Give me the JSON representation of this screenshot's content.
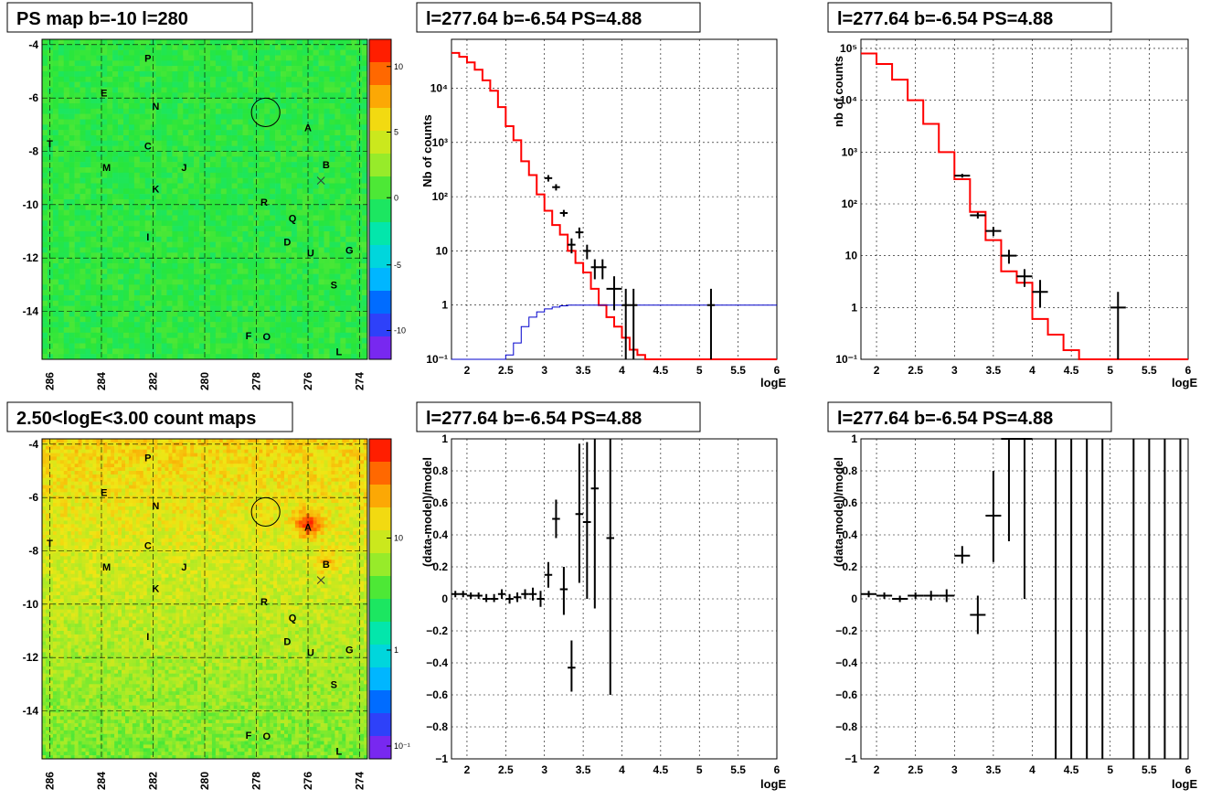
{
  "colors": {
    "model": "#ff0000",
    "second_model": "#0000cc",
    "data": "#000000",
    "map_base": "#33e040"
  },
  "panels": {
    "map_ps": {
      "title": "PS map b=-10 l=280",
      "x_ticks": [
        "286",
        "284",
        "282",
        "280",
        "278",
        "276",
        "274"
      ],
      "y_ticks": [
        "-4",
        "-6",
        "-8",
        "-10",
        "-12",
        "-14"
      ],
      "cbar_ticks": [
        "10",
        "5",
        "0",
        "-5",
        "-10"
      ]
    },
    "map_counts": {
      "title": "2.50<logE<3.00 count maps",
      "x_ticks": [
        "286",
        "284",
        "282",
        "280",
        "278",
        "276",
        "274"
      ],
      "y_ticks": [
        "-4",
        "-6",
        "-8",
        "-10",
        "-12",
        "-14"
      ],
      "cbar_ticks": [
        "10",
        "1",
        "10⁻¹"
      ]
    },
    "spec1": {
      "title": "l=277.64 b=-6.54 PS=4.88",
      "ylabel": "Nb of counts",
      "xlabel": "logE"
    },
    "spec2": {
      "title": "l=277.64 b=-6.54 PS=4.88",
      "ylabel": "nb of counts",
      "xlabel": "logE"
    },
    "resid1": {
      "title": "l=277.64 b=-6.54 PS=4.88",
      "ylabel": "(data-model)/model",
      "xlabel": "logE"
    },
    "resid2": {
      "title": "l=277.64 b=-6.54 PS=4.88",
      "ylabel": "(data-model)/model",
      "xlabel": "logE"
    }
  },
  "sources": [
    {
      "label": "P",
      "l": 282.2,
      "b": -4.5
    },
    {
      "label": "E",
      "l": 283.9,
      "b": -5.8
    },
    {
      "label": "N",
      "l": 281.9,
      "b": -6.3
    },
    {
      "label": "A",
      "l": 276.0,
      "b": -7.1
    },
    {
      "label": "T",
      "l": 286.0,
      "b": -7.7
    },
    {
      "label": "C",
      "l": 282.2,
      "b": -7.8
    },
    {
      "label": "B",
      "l": 275.3,
      "b": -8.5
    },
    {
      "label": "M",
      "l": 283.8,
      "b": -8.6
    },
    {
      "label": "J",
      "l": 280.8,
      "b": -8.6
    },
    {
      "label": "K",
      "l": 281.9,
      "b": -9.4
    },
    {
      "label": "R",
      "l": 277.7,
      "b": -9.9
    },
    {
      "label": "Q",
      "l": 276.6,
      "b": -10.5
    },
    {
      "label": "I",
      "l": 282.2,
      "b": -11.2
    },
    {
      "label": "D",
      "l": 276.8,
      "b": -11.4
    },
    {
      "label": "U",
      "l": 275.9,
      "b": -11.8
    },
    {
      "label": "G",
      "l": 274.4,
      "b": -11.7
    },
    {
      "label": "S",
      "l": 275.0,
      "b": -13.0
    },
    {
      "label": "F",
      "l": 278.3,
      "b": -14.9
    },
    {
      "label": "O",
      "l": 277.6,
      "b": -14.95
    },
    {
      "label": "L",
      "l": 274.8,
      "b": -15.5
    }
  ],
  "chart_data": [
    {
      "type": "heatmap",
      "panel": "map_ps",
      "xlabel": "",
      "ylabel": "",
      "xlim": [
        286.3,
        273.7
      ],
      "ylim": [
        -15.8,
        -3.8
      ],
      "circle": {
        "l": 277.64,
        "b": -6.54,
        "r": 0.55
      },
      "cross": {
        "l": 275.5,
        "b": -9.1
      }
    },
    {
      "type": "heatmap",
      "panel": "map_counts",
      "xlabel": "",
      "ylabel": "",
      "xlim": [
        286.3,
        273.7
      ],
      "ylim": [
        -15.8,
        -3.8
      ],
      "circle": {
        "l": 277.64,
        "b": -6.54,
        "r": 0.55
      },
      "cross": {
        "l": 275.5,
        "b": -9.1
      }
    },
    {
      "type": "line",
      "panel": "spec1",
      "ylog": true,
      "xlim": [
        1.8,
        6
      ],
      "ylim": [
        0.1,
        80000
      ],
      "x_ticks": [
        2,
        2.5,
        3,
        3.5,
        4,
        4.5,
        5,
        5.5,
        6
      ],
      "y_ticks": [
        {
          "v": 0.1,
          "l": "10⁻¹"
        },
        {
          "v": 1,
          "l": "1"
        },
        {
          "v": 10,
          "l": "10"
        },
        {
          "v": 100,
          "l": "10²"
        },
        {
          "v": 1000,
          "l": "10³"
        },
        {
          "v": 10000,
          "l": "10⁴"
        }
      ],
      "bin_edges": [
        1.8,
        1.9,
        2.0,
        2.1,
        2.2,
        2.3,
        2.4,
        2.5,
        2.6,
        2.7,
        2.8,
        2.9,
        3.0,
        3.1,
        3.2,
        3.3,
        3.4,
        3.5,
        3.6,
        3.7,
        3.8,
        3.9,
        4.0,
        4.1,
        4.2,
        4.3,
        6.0
      ],
      "series": [
        {
          "role": "model",
          "values": [
            45000,
            38000,
            30000,
            22000,
            14000,
            9000,
            4500,
            2000,
            1100,
            450,
            250,
            110,
            55,
            30,
            20,
            10,
            6,
            4,
            2,
            1,
            0.6,
            0.4,
            0.25,
            0.15,
            0.12,
            0.1
          ]
        },
        {
          "role": "second_model",
          "values": [
            0.1,
            0.1,
            0.1,
            0.1,
            0.1,
            0.1,
            0.1,
            0.12,
            0.2,
            0.4,
            0.6,
            0.75,
            0.85,
            0.92,
            0.97,
            1,
            1,
            1,
            1,
            1,
            1,
            1,
            1,
            1,
            1,
            1
          ]
        }
      ],
      "points": [
        {
          "x": 3.05,
          "y": 220,
          "xe": 0.05,
          "lo": 190,
          "hi": 250
        },
        {
          "x": 3.15,
          "y": 150,
          "xe": 0.05,
          "lo": 130,
          "hi": 170
        },
        {
          "x": 3.25,
          "y": 50,
          "xe": 0.05,
          "lo": 43,
          "hi": 57
        },
        {
          "x": 3.35,
          "y": 13,
          "xe": 0.05,
          "lo": 9,
          "hi": 17
        },
        {
          "x": 3.45,
          "y": 22,
          "xe": 0.05,
          "lo": 17,
          "hi": 27
        },
        {
          "x": 3.55,
          "y": 10,
          "xe": 0.05,
          "lo": 7,
          "hi": 13
        },
        {
          "x": 3.65,
          "y": 5,
          "xe": 0.05,
          "lo": 3,
          "hi": 7
        },
        {
          "x": 3.75,
          "y": 5,
          "xe": 0.05,
          "lo": 3,
          "hi": 7
        },
        {
          "x": 3.9,
          "y": 2,
          "xe": 0.1,
          "lo": 0.8,
          "hi": 3.4
        },
        {
          "x": 4.05,
          "y": 1,
          "xe": 0.05,
          "lo": 0.1,
          "hi": 2
        },
        {
          "x": 4.15,
          "y": 1,
          "xe": 0.05,
          "lo": 0.1,
          "hi": 2
        },
        {
          "x": 5.15,
          "y": 1,
          "xe": 0.05,
          "lo": 0.1,
          "hi": 2
        }
      ]
    },
    {
      "type": "line",
      "panel": "spec2",
      "ylog": true,
      "xlim": [
        1.8,
        6
      ],
      "ylim": [
        0.1,
        150000
      ],
      "x_ticks": [
        2,
        2.5,
        3,
        3.5,
        4,
        4.5,
        5,
        5.5,
        6
      ],
      "y_ticks": [
        {
          "v": 0.1,
          "l": "10⁻¹"
        },
        {
          "v": 1,
          "l": "1"
        },
        {
          "v": 10,
          "l": "10"
        },
        {
          "v": 100,
          "l": "10²"
        },
        {
          "v": 1000,
          "l": "10³"
        },
        {
          "v": 10000,
          "l": "10⁴"
        },
        {
          "v": 100000,
          "l": "10⁵"
        }
      ],
      "bin_edges": [
        1.8,
        2.0,
        2.2,
        2.4,
        2.6,
        2.8,
        3.0,
        3.2,
        3.4,
        3.6,
        3.8,
        4.0,
        4.2,
        4.4,
        4.6,
        6.0
      ],
      "series": [
        {
          "role": "model",
          "values": [
            80000,
            50000,
            25000,
            10000,
            3500,
            1000,
            300,
            70,
            20,
            5,
            3,
            0.6,
            0.3,
            0.15,
            0.1
          ]
        }
      ],
      "points": [
        {
          "x": 3.1,
          "y": 350,
          "xe": 0.1,
          "lo": 320,
          "hi": 380
        },
        {
          "x": 3.3,
          "y": 60,
          "xe": 0.1,
          "lo": 52,
          "hi": 68
        },
        {
          "x": 3.5,
          "y": 30,
          "xe": 0.1,
          "lo": 24,
          "hi": 36
        },
        {
          "x": 3.7,
          "y": 10,
          "xe": 0.1,
          "lo": 7,
          "hi": 13
        },
        {
          "x": 3.9,
          "y": 4,
          "xe": 0.1,
          "lo": 2.5,
          "hi": 5.5
        },
        {
          "x": 4.1,
          "y": 2,
          "xe": 0.1,
          "lo": 1,
          "hi": 3.4
        },
        {
          "x": 5.1,
          "y": 1,
          "xe": 0.1,
          "lo": 0.1,
          "hi": 2
        }
      ]
    },
    {
      "type": "scatter",
      "panel": "resid1",
      "xlim": [
        1.8,
        6
      ],
      "ylim": [
        -1,
        1
      ],
      "x_ticks": [
        2,
        2.5,
        3,
        3.5,
        4,
        4.5,
        5,
        5.5,
        6
      ],
      "y_ticks": [
        {
          "v": -1,
          "l": "−1"
        },
        {
          "v": -0.8,
          "l": "−0.8"
        },
        {
          "v": -0.6,
          "l": "−0.6"
        },
        {
          "v": -0.4,
          "l": "−0.4"
        },
        {
          "v": -0.2,
          "l": "−0.2"
        },
        {
          "v": 0,
          "l": "0"
        },
        {
          "v": 0.2,
          "l": "0.2"
        },
        {
          "v": 0.4,
          "l": "0.4"
        },
        {
          "v": 0.6,
          "l": "0.6"
        },
        {
          "v": 0.8,
          "l": "0.8"
        },
        {
          "v": 1,
          "l": "1"
        }
      ],
      "points": [
        {
          "x": 1.85,
          "y": 0.03,
          "xe": 0.05,
          "lo": 0.01,
          "hi": 0.05
        },
        {
          "x": 1.95,
          "y": 0.03,
          "xe": 0.05,
          "lo": 0.01,
          "hi": 0.05
        },
        {
          "x": 2.05,
          "y": 0.02,
          "xe": 0.05,
          "lo": 0.0,
          "hi": 0.04
        },
        {
          "x": 2.15,
          "y": 0.02,
          "xe": 0.05,
          "lo": 0.0,
          "hi": 0.04
        },
        {
          "x": 2.25,
          "y": 0.0,
          "xe": 0.05,
          "lo": -0.02,
          "hi": 0.03
        },
        {
          "x": 2.35,
          "y": 0.0,
          "xe": 0.05,
          "lo": -0.02,
          "hi": 0.03
        },
        {
          "x": 2.45,
          "y": 0.03,
          "xe": 0.05,
          "lo": 0.0,
          "hi": 0.06
        },
        {
          "x": 2.55,
          "y": 0.0,
          "xe": 0.05,
          "lo": -0.03,
          "hi": 0.03
        },
        {
          "x": 2.65,
          "y": 0.01,
          "xe": 0.05,
          "lo": -0.02,
          "hi": 0.04
        },
        {
          "x": 2.75,
          "y": 0.03,
          "xe": 0.05,
          "lo": 0.0,
          "hi": 0.06
        },
        {
          "x": 2.85,
          "y": 0.03,
          "xe": 0.05,
          "lo": -0.01,
          "hi": 0.07
        },
        {
          "x": 2.95,
          "y": 0.0,
          "xe": 0.05,
          "lo": -0.05,
          "hi": 0.05
        },
        {
          "x": 3.05,
          "y": 0.15,
          "xe": 0.05,
          "lo": 0.07,
          "hi": 0.23
        },
        {
          "x": 3.15,
          "y": 0.5,
          "xe": 0.05,
          "lo": 0.38,
          "hi": 0.62
        },
        {
          "x": 3.25,
          "y": 0.06,
          "xe": 0.05,
          "lo": -0.1,
          "hi": 0.2
        },
        {
          "x": 3.35,
          "y": -0.43,
          "xe": 0.05,
          "lo": -0.58,
          "hi": -0.26
        },
        {
          "x": 3.45,
          "y": 0.53,
          "xe": 0.05,
          "lo": 0.1,
          "hi": 0.97
        },
        {
          "x": 3.55,
          "y": 0.48,
          "xe": 0.05,
          "lo": 0.0,
          "hi": 0.98
        },
        {
          "x": 3.65,
          "y": 0.69,
          "xe": 0.05,
          "lo": -0.06,
          "hi": 1.0
        },
        {
          "x": 3.85,
          "y": 0.38,
          "xe": 0.05,
          "lo": -0.6,
          "hi": 1.0
        }
      ]
    },
    {
      "type": "scatter",
      "panel": "resid2",
      "xlim": [
        1.8,
        6
      ],
      "ylim": [
        -1,
        1
      ],
      "x_ticks": [
        2,
        2.5,
        3,
        3.5,
        4,
        4.5,
        5,
        5.5,
        6
      ],
      "y_ticks": [
        {
          "v": -1,
          "l": "−1"
        },
        {
          "v": -0.8,
          "l": "−0.8"
        },
        {
          "v": -0.6,
          "l": "−0.6"
        },
        {
          "v": -0.4,
          "l": "−0.4"
        },
        {
          "v": -0.2,
          "l": "−0.2"
        },
        {
          "v": 0,
          "l": "0"
        },
        {
          "v": 0.2,
          "l": "0.2"
        },
        {
          "v": 0.4,
          "l": "0.4"
        },
        {
          "v": 0.6,
          "l": "0.6"
        },
        {
          "v": 0.8,
          "l": "0.8"
        },
        {
          "v": 1,
          "l": "1"
        }
      ],
      "points": [
        {
          "x": 1.9,
          "y": 0.03,
          "xe": 0.1,
          "lo": 0.01,
          "hi": 0.05
        },
        {
          "x": 2.1,
          "y": 0.02,
          "xe": 0.1,
          "lo": 0.0,
          "hi": 0.04
        },
        {
          "x": 2.3,
          "y": 0.0,
          "xe": 0.1,
          "lo": -0.02,
          "hi": 0.02
        },
        {
          "x": 2.5,
          "y": 0.02,
          "xe": 0.1,
          "lo": 0.0,
          "hi": 0.04
        },
        {
          "x": 2.7,
          "y": 0.02,
          "xe": 0.1,
          "lo": -0.01,
          "hi": 0.05
        },
        {
          "x": 2.9,
          "y": 0.02,
          "xe": 0.1,
          "lo": -0.02,
          "hi": 0.06
        },
        {
          "x": 3.1,
          "y": 0.27,
          "xe": 0.1,
          "lo": 0.22,
          "hi": 0.33
        },
        {
          "x": 3.3,
          "y": -0.1,
          "xe": 0.1,
          "lo": -0.22,
          "hi": 0.02
        },
        {
          "x": 3.5,
          "y": 0.52,
          "xe": 0.1,
          "lo": 0.23,
          "hi": 0.8
        },
        {
          "x": 3.7,
          "y": 1.0,
          "xe": 0.1,
          "lo": 0.36,
          "hi": 1.0
        },
        {
          "x": 3.9,
          "y": 1.0,
          "xe": 0.1,
          "lo": 0.0,
          "hi": 1.0
        },
        {
          "x": 4.3,
          "y": 1.0,
          "xe": 0.0,
          "lo": -1.0,
          "hi": 1.0
        },
        {
          "x": 4.5,
          "y": 1.0,
          "xe": 0.0,
          "lo": -1.0,
          "hi": 1.0
        },
        {
          "x": 4.7,
          "y": 1.0,
          "xe": 0.0,
          "lo": -1.0,
          "hi": 1.0
        },
        {
          "x": 4.9,
          "y": 1.0,
          "xe": 0.0,
          "lo": -1.0,
          "hi": 1.0
        },
        {
          "x": 5.3,
          "y": 1.0,
          "xe": 0.0,
          "lo": -1.0,
          "hi": 1.0
        },
        {
          "x": 5.5,
          "y": 1.0,
          "xe": 0.0,
          "lo": -1.0,
          "hi": 1.0
        },
        {
          "x": 5.7,
          "y": 1.0,
          "xe": 0.0,
          "lo": -1.0,
          "hi": 1.0
        },
        {
          "x": 5.9,
          "y": 1.0,
          "xe": 0.0,
          "lo": -1.0,
          "hi": 1.0
        }
      ]
    }
  ]
}
